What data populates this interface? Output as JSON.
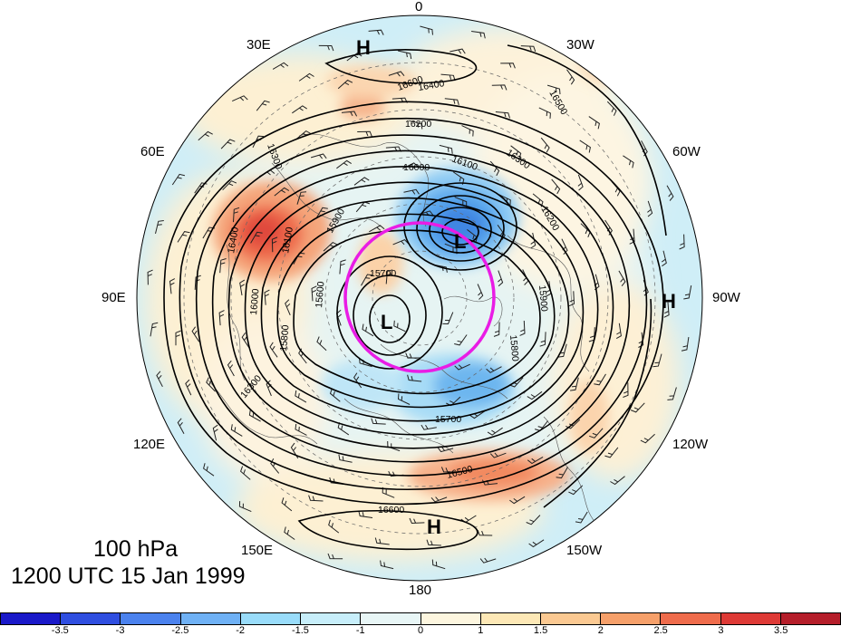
{
  "title": {
    "level": "100 hPa",
    "time": "1200 UTC 15 Jan 1999"
  },
  "longitude_labels": [
    {
      "id": "lon-0",
      "text": "0"
    },
    {
      "id": "lon-30w",
      "text": "30W"
    },
    {
      "id": "lon-60w",
      "text": "60W"
    },
    {
      "id": "lon-90w",
      "text": "90W"
    },
    {
      "id": "lon-120w",
      "text": "120W"
    },
    {
      "id": "lon-150w",
      "text": "150W"
    },
    {
      "id": "lon-180",
      "text": "180"
    },
    {
      "id": "lon-150e",
      "text": "150E"
    },
    {
      "id": "lon-120e",
      "text": "120E"
    },
    {
      "id": "lon-90e",
      "text": "90E"
    },
    {
      "id": "lon-60e",
      "text": "60E"
    },
    {
      "id": "lon-30e",
      "text": "30E"
    }
  ],
  "pressure_systems": [
    {
      "id": "high-1",
      "text": "H"
    },
    {
      "id": "high-2",
      "text": "H"
    },
    {
      "id": "high-3",
      "text": "H"
    },
    {
      "id": "low-1",
      "text": "L"
    },
    {
      "id": "low-2",
      "text": "L"
    }
  ],
  "contour_labels": [
    "16600",
    "16500",
    "16400",
    "16300",
    "16200",
    "16100",
    "16000",
    "15900",
    "15800",
    "15700",
    "15600",
    "16300",
    "16200",
    "16100",
    "16000",
    "15900",
    "15800",
    "15700",
    "16500",
    "16600",
    "16400",
    "16300"
  ],
  "colorbar": {
    "colors": [
      "#1a19c9",
      "#2f4ee0",
      "#4b82ee",
      "#6fb1f5",
      "#99dcfa",
      "#c7eefa",
      "#e8f6f6",
      "#fdf6df",
      "#fde8b6",
      "#fbc992",
      "#f6a06a",
      "#ef6c4c",
      "#de3a36",
      "#b51e2a"
    ],
    "ticks": [
      "-3.5",
      "-3",
      "-2.5",
      "-2",
      "-1.5",
      "-1",
      "0",
      "1",
      "1.5",
      "2",
      "2.5",
      "3",
      "3.5"
    ]
  },
  "highlight_circle_color": "#e91ce5"
}
